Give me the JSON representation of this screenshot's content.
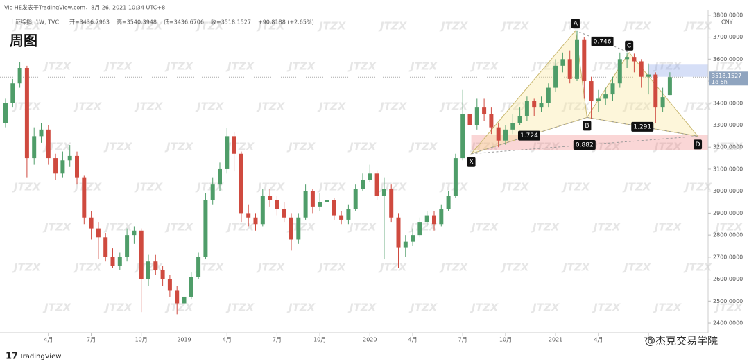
{
  "header": {
    "publisher": "Vic-HE发表于TradingView.com，8月 26, 2021 10:34 UTC+8",
    "symbol": "上证综指, 1W, TVC",
    "ohlc": [
      "开=3436.7963",
      "高=3540.3948",
      "低=3436.6706",
      "收=3518.1527",
      "+90.8188 (+2.65%)"
    ],
    "title": "周图"
  },
  "chart_data": {
    "type": "candlestick",
    "categories": [
      null,
      null,
      null,
      null,
      null,
      null,
      "4月",
      null,
      null,
      null,
      null,
      null,
      "7月",
      null,
      null,
      null,
      null,
      null,
      null,
      "10月",
      null,
      null,
      null,
      null,
      null,
      "2019",
      null,
      null,
      null,
      null,
      null,
      "4月",
      null,
      null,
      null,
      null,
      null,
      null,
      "7月",
      null,
      null,
      null,
      null,
      null,
      "10月",
      null,
      null,
      null,
      null,
      null,
      null,
      "2020",
      null,
      null,
      null,
      null,
      null,
      "4月",
      null,
      null,
      null,
      null,
      null,
      null,
      "7月",
      null,
      null,
      null,
      null,
      null,
      "10月",
      null,
      null,
      null,
      null,
      null,
      null,
      "2021",
      null,
      null,
      null,
      null,
      null,
      "4月",
      null,
      null,
      null,
      null,
      null,
      null,
      "7月",
      null,
      null,
      null
    ],
    "open": [
      3310,
      3400,
      3490,
      3560,
      3150,
      3250,
      3280,
      3150,
      3080,
      3140,
      3160,
      3060,
      2880,
      2830,
      2790,
      2700,
      2660,
      2700,
      2800,
      2820,
      2600,
      2680,
      2640,
      2600,
      2550,
      2490,
      2520,
      2610,
      2700,
      2960,
      3030,
      3100,
      3250,
      3170,
      2900,
      2880,
      2850,
      2980,
      2960,
      2920,
      2880,
      2780,
      2880,
      3000,
      2930,
      2950,
      2960,
      2890,
      2870,
      2920,
      3010,
      3050,
      3080,
      2980,
      3010,
      2880,
      2745,
      2770,
      2800,
      2860,
      2890,
      2850,
      2920,
      2980,
      3150,
      3350,
      3300,
      3380,
      3350,
      3290,
      3230,
      3280,
      3310,
      3340,
      3410,
      3380,
      3400,
      3470,
      3570,
      3600,
      3510,
      3690,
      3500,
      3410,
      3420,
      3440,
      3490,
      3600,
      3610,
      3590,
      3520,
      3530,
      3380,
      3436.7963
    ],
    "high": [
      3420,
      3510,
      3587,
      3570,
      3290,
      3310,
      3300,
      3170,
      3180,
      3210,
      3180,
      3070,
      2910,
      2860,
      2810,
      2740,
      2720,
      2830,
      2840,
      2830,
      2710,
      2710,
      2660,
      2620,
      2570,
      2550,
      2630,
      2720,
      2990,
      3060,
      3130,
      3288,
      3270,
      3180,
      2940,
      2900,
      3010,
      3010,
      2980,
      2950,
      2900,
      2900,
      3030,
      3010,
      2990,
      2990,
      2970,
      2910,
      2940,
      3030,
      3080,
      3120,
      3095,
      3060,
      3030,
      2900,
      2800,
      2830,
      2880,
      2910,
      2910,
      2940,
      3000,
      3170,
      3460,
      3400,
      3420,
      3420,
      3380,
      3310,
      3300,
      3350,
      3380,
      3430,
      3420,
      3430,
      3490,
      3600,
      3630,
      3640,
      3731,
      3700,
      3520,
      3460,
      3470,
      3520,
      3630,
      3630,
      3625,
      3600,
      3580,
      3540,
      3470,
      3540.3948
    ],
    "low": [
      3290,
      3380,
      3470,
      3060,
      3120,
      3220,
      3120,
      3050,
      3060,
      3110,
      3030,
      2850,
      2780,
      2690,
      2680,
      2650,
      2640,
      2680,
      2760,
      2450,
      2570,
      2620,
      2570,
      2520,
      2440,
      2440,
      2510,
      2600,
      2690,
      2940,
      3000,
      3080,
      3090,
      2860,
      2840,
      2820,
      2840,
      2930,
      2890,
      2860,
      2730,
      2760,
      2870,
      2900,
      2910,
      2930,
      2870,
      2850,
      2850,
      2910,
      3000,
      3040,
      2960,
      2690,
      2860,
      2650,
      2700,
      2750,
      2790,
      2840,
      2820,
      2840,
      2910,
      2970,
      3140,
      3200,
      3280,
      3320,
      3260,
      3200,
      3210,
      3260,
      3300,
      3320,
      3340,
      3360,
      3380,
      3450,
      3540,
      3490,
      3500,
      3420,
      3330,
      3360,
      3390,
      3410,
      3470,
      3560,
      3540,
      3470,
      3440,
      3310,
      3360,
      3436.6706
    ],
    "close": [
      3400,
      3490,
      3560,
      3150,
      3250,
      3280,
      3150,
      3080,
      3140,
      3160,
      3060,
      2880,
      2830,
      2790,
      2700,
      2660,
      2700,
      2800,
      2820,
      2600,
      2680,
      2640,
      2600,
      2550,
      2490,
      2520,
      2610,
      2700,
      2960,
      3030,
      3100,
      3250,
      3170,
      2900,
      2880,
      2850,
      2980,
      2960,
      2920,
      2880,
      2780,
      2880,
      3000,
      2930,
      2950,
      2960,
      2890,
      2870,
      2920,
      3010,
      3050,
      3080,
      2980,
      3010,
      2880,
      2745,
      2770,
      2800,
      2860,
      2890,
      2850,
      2920,
      2980,
      3150,
      3350,
      3300,
      3380,
      3350,
      3290,
      3230,
      3280,
      3310,
      3340,
      3410,
      3380,
      3400,
      3470,
      3570,
      3600,
      3510,
      3690,
      3500,
      3410,
      3420,
      3440,
      3490,
      3600,
      3610,
      3590,
      3520,
      3530,
      3380,
      3427.3339,
      3518.1527
    ],
    "up_color": "#4f9d69",
    "down_color": "#cf4a3f",
    "ylim": [
      2356,
      3850
    ],
    "yticks": [
      {
        "value": 2400,
        "label": "2400.0000"
      },
      {
        "value": 2500,
        "label": "2500.0000"
      },
      {
        "value": 2600,
        "label": "2600.0000"
      },
      {
        "value": 2700,
        "label": "2700.0000"
      },
      {
        "value": 2800,
        "label": "2800.0000"
      },
      {
        "value": 2900,
        "label": "2900.0000"
      },
      {
        "value": 3000,
        "label": "3000.0000"
      },
      {
        "value": 3100,
        "label": "3100.0000"
      },
      {
        "value": 3200,
        "label": "3200.0000"
      },
      {
        "value": 3300,
        "label": "3300.0000"
      },
      {
        "value": 3400,
        "label": "3400.0000"
      },
      {
        "value": 3500,
        "label": "3500.0000"
      },
      {
        "value": 3600,
        "label": "3600.0000"
      },
      {
        "value": 3700,
        "label": "3700.0000"
      },
      {
        "value": 3800,
        "label": "3800.0000"
      }
    ],
    "currency": "CNY",
    "price_tag": {
      "price": "3518.1527",
      "countdown": "1d 5h"
    },
    "pattern": {
      "points": [
        {
          "label": "X",
          "x": 65.2,
          "y": 3170
        },
        {
          "label": "A",
          "x": 79.8,
          "y": 3730
        },
        {
          "label": "B",
          "x": 81.4,
          "y": 3335
        },
        {
          "label": "C",
          "x": 87.3,
          "y": 3630
        },
        {
          "label": "D",
          "x": 96.9,
          "y": 3250
        }
      ],
      "ratios": [
        "1.724",
        "0.746",
        "1.291",
        "0.882"
      ]
    },
    "zones": [
      {
        "x_start": 90.0,
        "top": 3575,
        "bottom": 3520,
        "color": "rgba(120,150,230,0.3)"
      },
      {
        "x_start": 65.2,
        "top": 3255,
        "bottom": 3185,
        "color": "rgba(240,120,120,0.3)"
      }
    ],
    "watermark": "JTZX",
    "footer": {
      "logo": "TradingView",
      "credit": "@杰克交易学院"
    }
  }
}
